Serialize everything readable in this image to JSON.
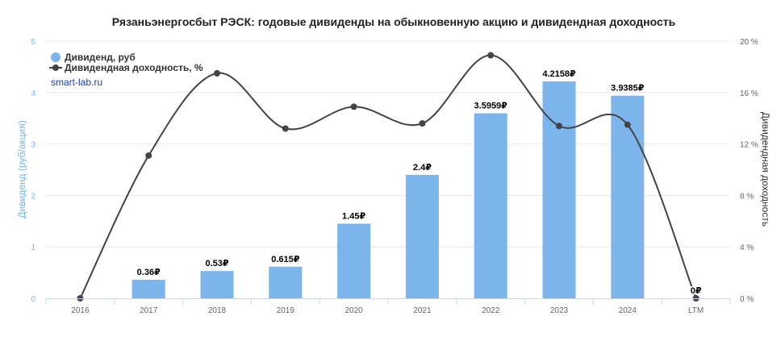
{
  "chart_data": {
    "type": "bar+line",
    "title": "Рязаньэнергосбыт РЭСК: годовые дивиденды на обыкновенную акцию и дивидендная доходность",
    "categories": [
      "2016",
      "2017",
      "2018",
      "2019",
      "2020",
      "2021",
      "2022",
      "2023",
      "2024",
      "LTM"
    ],
    "series": [
      {
        "name": "Дивиденд, руб",
        "type": "bar",
        "axis": "left",
        "color": "#7cb5ec",
        "values": [
          null,
          0.36,
          0.53,
          0.615,
          1.45,
          2.4,
          3.5959,
          4.2158,
          3.9385,
          0
        ],
        "labels": [
          "",
          "0.36₽",
          "0.53₽",
          "0.615₽",
          "1.45₽",
          "2.4₽",
          "3.5959₽",
          "4.2158₽",
          "3.9385₽",
          "0₽"
        ]
      },
      {
        "name": "Дивидендная доходность, %",
        "type": "spline",
        "axis": "right",
        "color": "#434348",
        "values": [
          0,
          11.1,
          17.5,
          13.2,
          14.9,
          13.6,
          18.9,
          13.4,
          13.5,
          0
        ]
      }
    ],
    "yaxis_left": {
      "title": "Дивиденд (руб/акция)",
      "min": 0,
      "max": 5,
      "ticks": [
        "0",
        "1",
        "2",
        "3",
        "4",
        "5"
      ]
    },
    "yaxis_right": {
      "title": "Дивидендная доходность",
      "min": 0,
      "max": 20,
      "ticks": [
        "0 %",
        "4 %",
        "8 %",
        "12 %",
        "16 %",
        "20 %"
      ]
    },
    "grid": true,
    "legend": "top-left",
    "credit": "smart-lab.ru"
  }
}
